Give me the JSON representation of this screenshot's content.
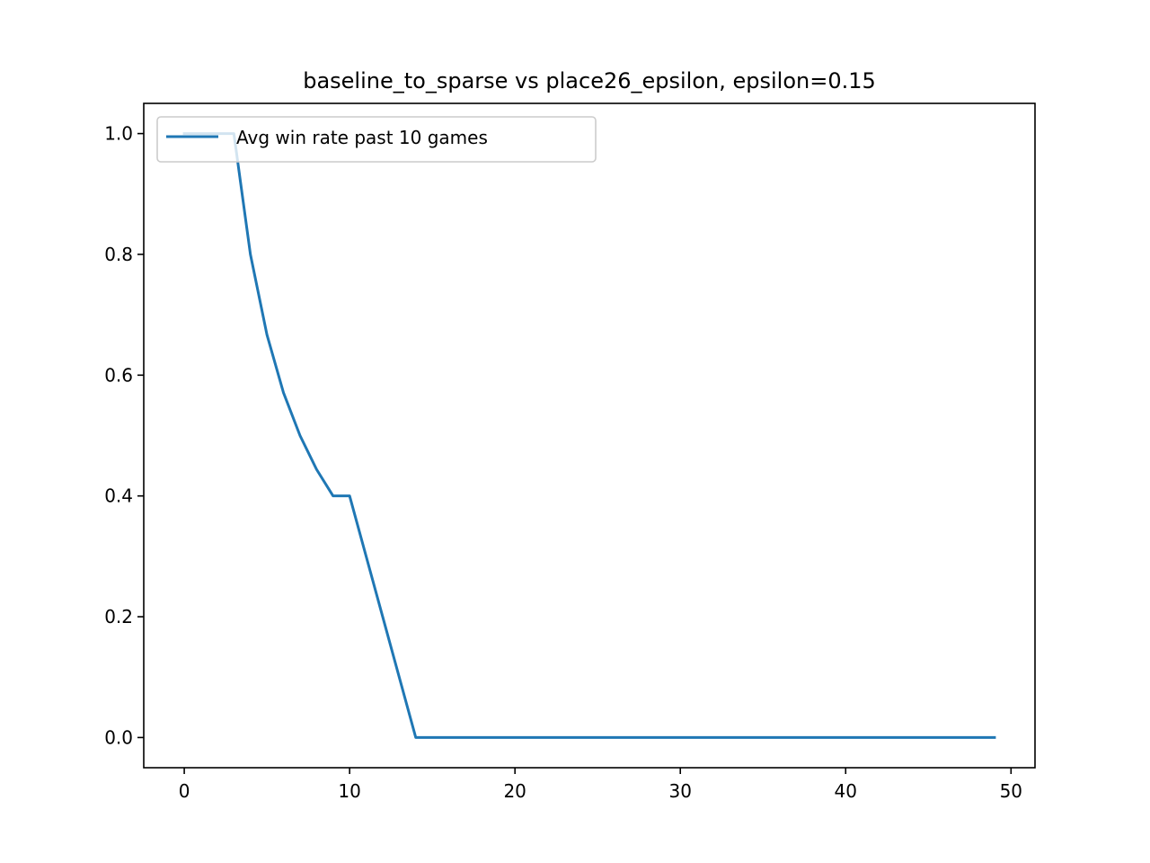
{
  "chart_data": {
    "type": "line",
    "title": "baseline_to_sparse vs place26_epsilon, epsilon=0.15",
    "xlabel": "",
    "ylabel": "",
    "xlim": [
      -2.45,
      51.45
    ],
    "ylim": [
      -0.05,
      1.05
    ],
    "xticks": [
      0,
      10,
      20,
      30,
      40,
      50
    ],
    "yticks": [
      0.0,
      0.2,
      0.4,
      0.6,
      0.8,
      1.0
    ],
    "xtick_labels": [
      "0",
      "10",
      "20",
      "30",
      "40",
      "50"
    ],
    "ytick_labels": [
      "0.0",
      "0.2",
      "0.4",
      "0.6",
      "0.8",
      "1.0"
    ],
    "grid": false,
    "legend_position": "upper-left",
    "series": [
      {
        "name": "Avg win rate past 10 games",
        "color": "#1f77b4",
        "x": [
          0,
          1,
          2,
          3,
          4,
          5,
          6,
          7,
          8,
          9,
          10,
          11,
          12,
          13,
          14,
          15,
          16,
          17,
          18,
          19,
          20,
          21,
          22,
          23,
          24,
          25,
          26,
          27,
          28,
          29,
          30,
          31,
          32,
          33,
          34,
          35,
          36,
          37,
          38,
          39,
          40,
          41,
          42,
          43,
          44,
          45,
          46,
          47,
          48,
          49
        ],
        "y": [
          1.0,
          1.0,
          1.0,
          1.0,
          0.8,
          0.667,
          0.571,
          0.5,
          0.444,
          0.4,
          0.4,
          0.3,
          0.2,
          0.1,
          0.0,
          0.0,
          0.0,
          0.0,
          0.0,
          0.0,
          0.0,
          0.0,
          0.0,
          0.0,
          0.0,
          0.0,
          0.0,
          0.0,
          0.0,
          0.0,
          0.0,
          0.0,
          0.0,
          0.0,
          0.0,
          0.0,
          0.0,
          0.0,
          0.0,
          0.0,
          0.0,
          0.0,
          0.0,
          0.0,
          0.0,
          0.0,
          0.0,
          0.0,
          0.0,
          0.0
        ]
      }
    ]
  }
}
